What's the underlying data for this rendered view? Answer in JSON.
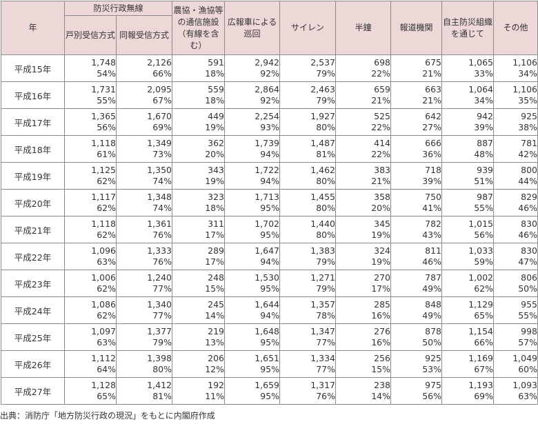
{
  "headers": {
    "year": "年",
    "group_musen": "防災行政無線",
    "kobetsu": "戸別受信方式",
    "doho": "同報受信方式",
    "nokyo": "農協・漁協等の通信施設（有線を含む）",
    "kohosha": "広報車による巡回",
    "siren": "サイレン",
    "hansho": "半鐘",
    "hodo": "報道機関",
    "jishu": "自主防災組織を通じて",
    "sonota": "その他"
  },
  "rows": [
    {
      "year": "平成15年",
      "vals": [
        [
          "1,748",
          "54%"
        ],
        [
          "2,126",
          "66%"
        ],
        [
          "591",
          "18%"
        ],
        [
          "2,942",
          "92%"
        ],
        [
          "2,537",
          "79%"
        ],
        [
          "698",
          "22%"
        ],
        [
          "675",
          "21%"
        ],
        [
          "1,065",
          "33%"
        ],
        [
          "1,106",
          "34%"
        ]
      ]
    },
    {
      "year": "平成16年",
      "vals": [
        [
          "1,731",
          "55%"
        ],
        [
          "2,095",
          "67%"
        ],
        [
          "559",
          "18%"
        ],
        [
          "2,864",
          "92%"
        ],
        [
          "2,463",
          "79%"
        ],
        [
          "659",
          "21%"
        ],
        [
          "663",
          "21%"
        ],
        [
          "1,064",
          "34%"
        ],
        [
          "1,106",
          "35%"
        ]
      ]
    },
    {
      "year": "平成17年",
      "vals": [
        [
          "1,365",
          "56%"
        ],
        [
          "1,670",
          "69%"
        ],
        [
          "449",
          "19%"
        ],
        [
          "2,254",
          "93%"
        ],
        [
          "1,927",
          "80%"
        ],
        [
          "525",
          "22%"
        ],
        [
          "642",
          "27%"
        ],
        [
          "942",
          "39%"
        ],
        [
          "925",
          "38%"
        ]
      ]
    },
    {
      "year": "平成18年",
      "vals": [
        [
          "1,118",
          "61%"
        ],
        [
          "1,349",
          "73%"
        ],
        [
          "362",
          "20%"
        ],
        [
          "1,739",
          "94%"
        ],
        [
          "1,487",
          "81%"
        ],
        [
          "414",
          "22%"
        ],
        [
          "666",
          "36%"
        ],
        [
          "887",
          "48%"
        ],
        [
          "781",
          "42%"
        ]
      ]
    },
    {
      "year": "平成19年",
      "vals": [
        [
          "1,125",
          "62%"
        ],
        [
          "1,350",
          "74%"
        ],
        [
          "343",
          "19%"
        ],
        [
          "1,722",
          "94%"
        ],
        [
          "1,462",
          "80%"
        ],
        [
          "383",
          "21%"
        ],
        [
          "718",
          "39%"
        ],
        [
          "939",
          "51%"
        ],
        [
          "800",
          "44%"
        ]
      ]
    },
    {
      "year": "平成20年",
      "vals": [
        [
          "1,117",
          "62%"
        ],
        [
          "1,348",
          "74%"
        ],
        [
          "323",
          "18%"
        ],
        [
          "1,713",
          "95%"
        ],
        [
          "1,455",
          "80%"
        ],
        [
          "358",
          "20%"
        ],
        [
          "750",
          "41%"
        ],
        [
          "987",
          "55%"
        ],
        [
          "829",
          "46%"
        ]
      ]
    },
    {
      "year": "平成21年",
      "vals": [
        [
          "1,118",
          "62%"
        ],
        [
          "1,361",
          "76%"
        ],
        [
          "311",
          "17%"
        ],
        [
          "1,702",
          "95%"
        ],
        [
          "1,440",
          "80%"
        ],
        [
          "345",
          "19%"
        ],
        [
          "782",
          "43%"
        ],
        [
          "1,015",
          "56%"
        ],
        [
          "830",
          "46%"
        ]
      ]
    },
    {
      "year": "平成22年",
      "vals": [
        [
          "1,096",
          "63%"
        ],
        [
          "1,333",
          "76%"
        ],
        [
          "289",
          "17%"
        ],
        [
          "1,647",
          "94%"
        ],
        [
          "1,383",
          "79%"
        ],
        [
          "324",
          "19%"
        ],
        [
          "811",
          "46%"
        ],
        [
          "1,033",
          "59%"
        ],
        [
          "830",
          "47%"
        ]
      ]
    },
    {
      "year": "平成23年",
      "vals": [
        [
          "1,006",
          "62%"
        ],
        [
          "1,240",
          "77%"
        ],
        [
          "248",
          "15%"
        ],
        [
          "1,530",
          "95%"
        ],
        [
          "1,271",
          "79%"
        ],
        [
          "270",
          "17%"
        ],
        [
          "787",
          "49%"
        ],
        [
          "1,002",
          "62%"
        ],
        [
          "806",
          "50%"
        ]
      ]
    },
    {
      "year": "平成24年",
      "vals": [
        [
          "1,086",
          "62%"
        ],
        [
          "1,340",
          "77%"
        ],
        [
          "245",
          "14%"
        ],
        [
          "1,644",
          "94%"
        ],
        [
          "1,357",
          "78%"
        ],
        [
          "285",
          "16%"
        ],
        [
          "848",
          "49%"
        ],
        [
          "1,129",
          "65%"
        ],
        [
          "955",
          "55%"
        ]
      ]
    },
    {
      "year": "平成25年",
      "vals": [
        [
          "1,097",
          "63%"
        ],
        [
          "1,377",
          "79%"
        ],
        [
          "219",
          "13%"
        ],
        [
          "1,648",
          "95%"
        ],
        [
          "1,347",
          "77%"
        ],
        [
          "276",
          "16%"
        ],
        [
          "878",
          "50%"
        ],
        [
          "1,154",
          "66%"
        ],
        [
          "998",
          "57%"
        ]
      ]
    },
    {
      "year": "平成26年",
      "vals": [
        [
          "1,112",
          "64%"
        ],
        [
          "1,398",
          "80%"
        ],
        [
          "206",
          "12%"
        ],
        [
          "1,651",
          "95%"
        ],
        [
          "1,334",
          "77%"
        ],
        [
          "256",
          "15%"
        ],
        [
          "925",
          "53%"
        ],
        [
          "1,169",
          "67%"
        ],
        [
          "1,049",
          "60%"
        ]
      ]
    },
    {
      "year": "平成27年",
      "vals": [
        [
          "1,128",
          "65%"
        ],
        [
          "1,412",
          "81%"
        ],
        [
          "192",
          "11%"
        ],
        [
          "1,659",
          "95%"
        ],
        [
          "1,317",
          "76%"
        ],
        [
          "238",
          "14%"
        ],
        [
          "975",
          "56%"
        ],
        [
          "1,193",
          "69%"
        ],
        [
          "1,093",
          "63%"
        ]
      ]
    }
  ],
  "source": "出典：消防庁「地方防災行政の現況」をもとに内閣府作成"
}
